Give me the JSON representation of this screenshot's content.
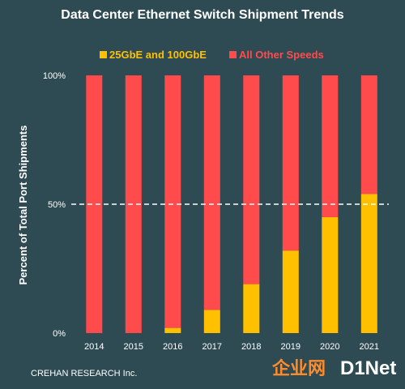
{
  "chart_data": {
    "type": "bar",
    "stacked": true,
    "title": "Data Center Ethernet Switch Shipment Trends",
    "ylabel": "Percent of Total Port Shipments",
    "categories": [
      "2014",
      "2015",
      "2016",
      "2017",
      "2018",
      "2019",
      "2020",
      "2021"
    ],
    "series": [
      {
        "name": "25GbE and 100GbE",
        "color": "#ffc000",
        "values": [
          0,
          0,
          2,
          9,
          19,
          32,
          45,
          54
        ]
      },
      {
        "name": "All Other Speeds",
        "color": "#ff4b4b",
        "values": [
          100,
          100,
          98,
          91,
          81,
          68,
          55,
          46
        ]
      }
    ],
    "ylim": [
      0,
      100
    ],
    "yticks": [
      "0%",
      "50%",
      "100%"
    ],
    "reference_line": 50,
    "legend_position": "top-center",
    "grid": false
  },
  "source": "CREHAN RESEARCH Inc.",
  "watermark": {
    "chinese": "企业网",
    "brand": "D1Net"
  }
}
